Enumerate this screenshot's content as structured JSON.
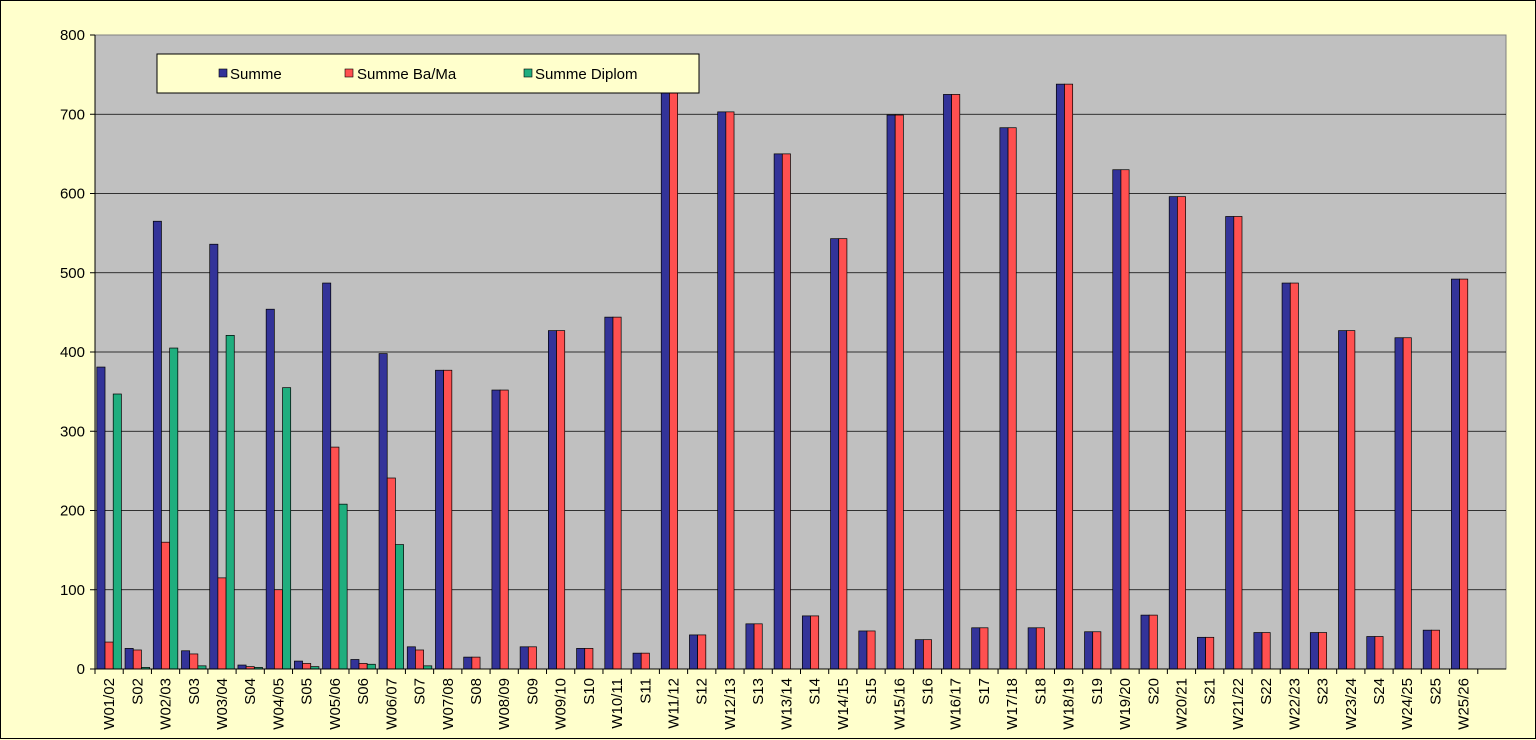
{
  "chart_data": {
    "type": "bar",
    "title": "",
    "xlabel": "",
    "ylabel": "",
    "ylim": [
      0,
      800
    ],
    "yticks": [
      "0",
      "100",
      "200",
      "300",
      "400",
      "500",
      "600",
      "700",
      "800"
    ],
    "grid": true,
    "legend_position": "top-left",
    "categories": [
      "W01/02",
      "S02",
      "W02/03",
      "S03",
      "W03/04",
      "S04",
      "W04/05",
      "S05",
      "W05/06",
      "S06",
      "W06/07",
      "S07",
      "W07/08",
      "S08",
      "W08/09",
      "S09",
      "W09/10",
      "S10",
      "W10/11",
      "S11",
      "W11/12",
      "S12",
      "W12/13",
      "S13",
      "W13/14",
      "S14",
      "W14/15",
      "S15",
      "W15/16",
      "S16",
      "W16/17",
      "S17",
      "W17/18",
      "S18",
      "W18/19",
      "S19",
      "W19/20",
      "S20",
      "W20/21",
      "S21",
      "W21/22",
      "S22",
      "W22/23",
      "S23",
      "W23/24",
      "S24",
      "W24/25",
      "S25",
      "W25/26"
    ],
    "series": [
      {
        "name": "Summe",
        "color": "#333399",
        "values": [
          381,
          26,
          565,
          23,
          536,
          5,
          454,
          10,
          487,
          12,
          398,
          28,
          377,
          15,
          352,
          28,
          427,
          26,
          444,
          20,
          729,
          43,
          703,
          57,
          650,
          67,
          543,
          48,
          699,
          37,
          725,
          52,
          683,
          52,
          738,
          47,
          630,
          68,
          596,
          40,
          571,
          46,
          487,
          46,
          427,
          41,
          418,
          49,
          492
        ]
      },
      {
        "name": "Summe Ba/Ma",
        "color": "#FF5050",
        "values": [
          34,
          24,
          160,
          19,
          115,
          3,
          100,
          7,
          280,
          7,
          241,
          24,
          377,
          15,
          352,
          28,
          427,
          26,
          444,
          20,
          729,
          43,
          703,
          57,
          650,
          67,
          543,
          48,
          699,
          37,
          725,
          52,
          683,
          52,
          738,
          47,
          630,
          68,
          596,
          40,
          571,
          46,
          487,
          46,
          427,
          41,
          418,
          49,
          492
        ]
      },
      {
        "name": "Summe Diplom",
        "color": "#1FAE7E",
        "values": [
          347,
          2,
          405,
          4,
          421,
          2,
          355,
          3,
          208,
          6,
          157,
          4,
          0,
          0,
          0,
          0,
          0,
          0,
          0,
          0,
          0,
          0,
          0,
          0,
          0,
          0,
          0,
          0,
          0,
          0,
          0,
          0,
          0,
          0,
          0,
          0,
          0,
          0,
          0,
          0,
          0,
          0,
          0,
          0,
          0,
          0,
          0,
          0,
          0
        ]
      }
    ]
  }
}
